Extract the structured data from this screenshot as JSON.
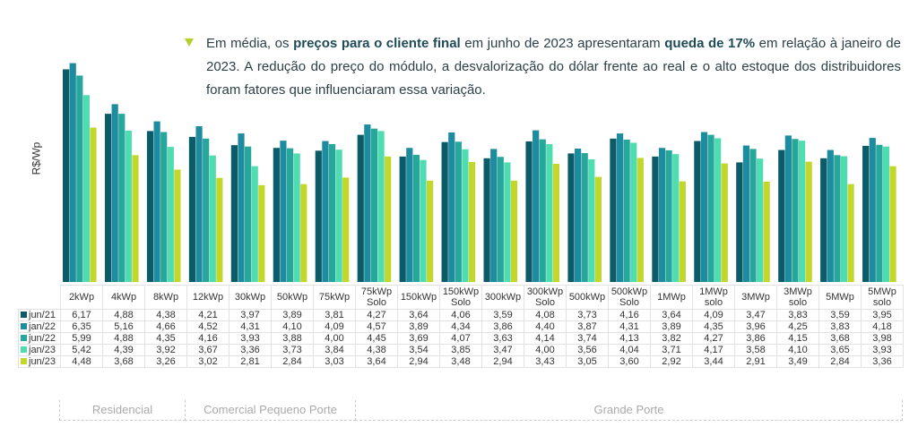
{
  "intro": {
    "p1": "Em média, os ",
    "b1": "preços para o cliente final",
    "p2": " em junho de 2023 apresentaram ",
    "b2": "queda de 17%",
    "p3": " em relação à janeiro de 2023. A redução do preço do módulo, a desvalorização do dólar frente ao real e o alto estoque dos distribuidores foram fatores que influenciaram essa variação."
  },
  "chart_data": {
    "type": "bar",
    "ylabel": "R$/Wp",
    "ylim": [
      0,
      6.35
    ],
    "categories": [
      "2kWp",
      "4kWp",
      "8kWp",
      "12kWp",
      "30kWp",
      "50kWp",
      "75kWp",
      "75kWp Solo",
      "150kWp",
      "150kWp Solo",
      "300kWp",
      "300kWp Solo",
      "500kWp",
      "500kWp Solo",
      "1MWp",
      "1MWp solo",
      "3MWp",
      "3MWp solo",
      "5MWp",
      "5MWp solo"
    ],
    "series": [
      {
        "name": "jun/21",
        "color": "#0b5c68",
        "values": [
          "6,17",
          "4,88",
          "4,38",
          "4,21",
          "3,97",
          "3,89",
          "3,81",
          "4,27",
          "3,64",
          "4,06",
          "3,59",
          "4,08",
          "3,73",
          "4,16",
          "3,64",
          "4,09",
          "3,47",
          "3,83",
          "3,59",
          "3,95"
        ]
      },
      {
        "name": "jan/22",
        "color": "#1d8c9e",
        "values": [
          "6,35",
          "5,16",
          "4,66",
          "4,52",
          "4,31",
          "4,10",
          "4,09",
          "4,57",
          "3,89",
          "4,34",
          "3,86",
          "4,40",
          "3,87",
          "4,31",
          "3,89",
          "4,35",
          "3,96",
          "4,25",
          "3,83",
          "4,18"
        ]
      },
      {
        "name": "jun/22",
        "color": "#27a79c",
        "values": [
          "5,99",
          "4,88",
          "4,35",
          "4,16",
          "3,93",
          "3,88",
          "4,00",
          "4,45",
          "3,69",
          "4,07",
          "3,63",
          "4,14",
          "3,74",
          "4,13",
          "3,82",
          "4,27",
          "3,86",
          "4,15",
          "3,68",
          "3,98"
        ]
      },
      {
        "name": "jan/23",
        "color": "#4edcb0",
        "values": [
          "5,42",
          "4,39",
          "3,92",
          "3,67",
          "3,36",
          "3,73",
          "3,84",
          "4,38",
          "3,54",
          "3,85",
          "3,47",
          "4,00",
          "3,56",
          "4,04",
          "3,71",
          "4,17",
          "3,58",
          "4,10",
          "3,65",
          "3,93"
        ]
      },
      {
        "name": "jun/23",
        "color": "#c3d62b",
        "values": [
          "4,48",
          "3,68",
          "3,26",
          "3,02",
          "2,81",
          "2,84",
          "3,03",
          "3,64",
          "2,94",
          "3,48",
          "2,94",
          "3,43",
          "3,05",
          "3,60",
          "2,92",
          "3,44",
          "2,91",
          "3,49",
          "2,84",
          "3,36"
        ]
      }
    ],
    "groups": [
      "Residencial",
      "Comercial Pequeno Porte",
      "Grande Porte"
    ]
  }
}
